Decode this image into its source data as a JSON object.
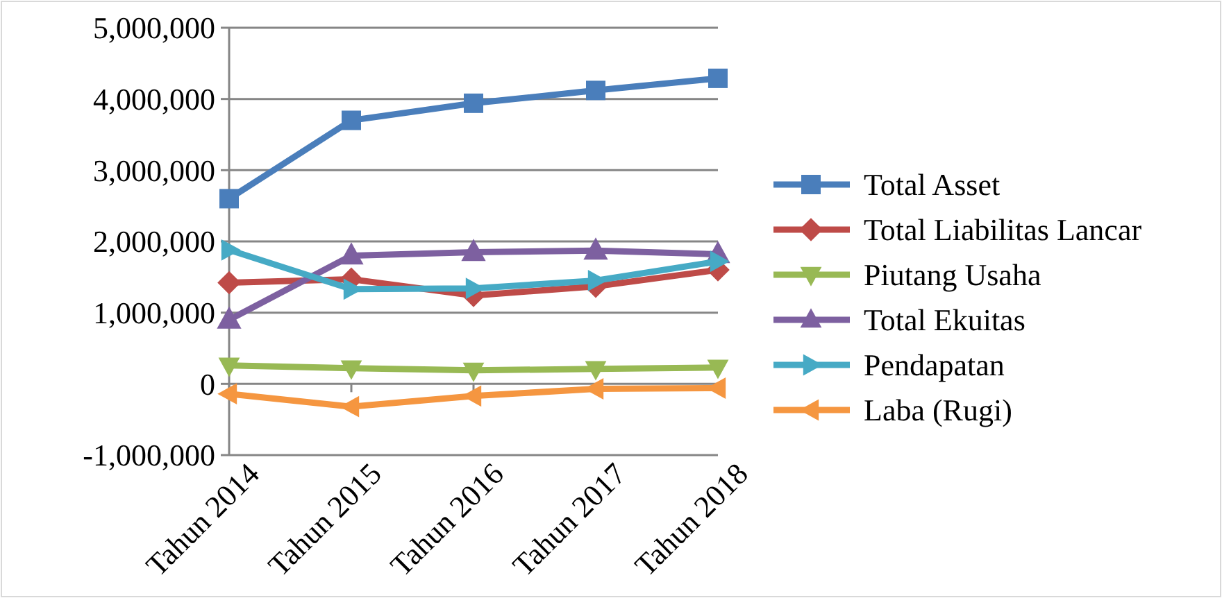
{
  "chart_data": {
    "type": "line",
    "categories": [
      "Tahun 2014",
      "Tahun 2015",
      "Tahun 2016",
      "Tahun 2017",
      "Tahun 2018"
    ],
    "ylim": [
      -1000000,
      5000000
    ],
    "yticks": [
      {
        "value": -1000000,
        "label": "-1,000,000"
      },
      {
        "value": 0,
        "label": "0"
      },
      {
        "value": 1000000,
        "label": "1,000,000"
      },
      {
        "value": 2000000,
        "label": "2,000,000"
      },
      {
        "value": 3000000,
        "label": "3,000,000"
      },
      {
        "value": 4000000,
        "label": "4,000,000"
      },
      {
        "value": 5000000,
        "label": "5,000,000"
      }
    ],
    "grid": "y",
    "legend": "right",
    "line_style": "solid",
    "series": [
      {
        "name": "Total Asset",
        "color": "#4a7ebb",
        "marker": "square",
        "values": [
          2600000,
          3700000,
          3940000,
          4120000,
          4290000
        ]
      },
      {
        "name": "Total Liabilitas Lancar",
        "color": "#be4b48",
        "marker": "diamond",
        "values": [
          1420000,
          1470000,
          1240000,
          1370000,
          1600000
        ]
      },
      {
        "name": "Piutang Usaha",
        "color": "#98b954",
        "marker": "triangle",
        "values": [
          260000,
          220000,
          190000,
          210000,
          230000
        ]
      },
      {
        "name": "Total Ekuitas",
        "color": "#7d60a0",
        "marker": "triangle",
        "values": [
          900000,
          1800000,
          1850000,
          1870000,
          1820000
        ]
      },
      {
        "name": "Pendapatan",
        "color": "#46aac5",
        "marker": "triangle",
        "values": [
          1880000,
          1330000,
          1340000,
          1450000,
          1720000
        ]
      },
      {
        "name": "Laba (Rugi)",
        "color": "#f59640",
        "marker": "triangle",
        "values": [
          -140000,
          -320000,
          -170000,
          -70000,
          -60000
        ]
      }
    ]
  }
}
